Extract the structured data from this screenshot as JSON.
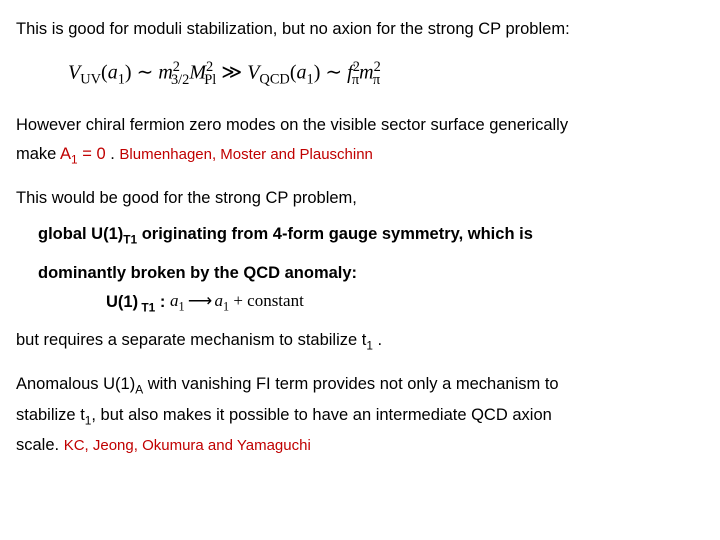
{
  "p1": "This is good for moduli stabilization, but no axion for the strong CP problem:",
  "eq1": {
    "Vuv": "V",
    "uv_sub": "UV",
    "arg1_open": "(",
    "arg1_a": "a",
    "arg1_sub": "1",
    "arg1_close": ")",
    "sim1": " ∼ ",
    "m32_m": "m",
    "m32_sub": "3/2",
    "m32_sup": "2",
    "Mpl_M": "M",
    "Mpl_sub": "Pl",
    "Mpl_sup": "2",
    "gg": " ≫ ",
    "Vqcd_V": "V",
    "qcd_sub": "QCD",
    "arg2_open": "(",
    "arg2_a": "a",
    "arg2_sub": "1",
    "arg2_close": ")",
    "sim2": " ∼ ",
    "fpi_f": "f",
    "fpi_sub": "π",
    "fpi_sup": "2",
    "mpi_m": "m",
    "mpi_sub": "π",
    "mpi_sup": "2"
  },
  "p2a": "However chiral fermion zero modes on the visible sector surface generically",
  "p2b_make": "make   ",
  "p2b_A": "A",
  "p2b_Asub": "1",
  "p2b_eq": " = 0 ",
  "p2b_dot": ".  ",
  "cite1": "Blumenhagen, Moster and Plauschinn",
  "p3": "This would be good for the strong CP problem,",
  "p4a": "global U(1)",
  "p4a_sub": "T1",
  "p4a_rest": "  originating from 4-form gauge symmetry, which is",
  "p4b": "dominantly  broken by the QCD anomaly:",
  "u1line": {
    "label_U": "U(1)",
    "label_sub": " T1",
    "colon": " :    ",
    "a1_a": "a",
    "a1_sub": "1",
    "arrow": "  ⟶  ",
    "a1b_a": "a",
    "a1b_sub": "1",
    "plus_const": " + constant"
  },
  "p5a": "but requires a separate mechanism to stabilize t",
  "p5a_sub": "1",
  "p5a_end": " .",
  "p6a": "Anomalous U(1)",
  "p6a_sub": "A",
  "p6a_rest": " with vanishing FI term provides not only a  mechanism to",
  "p6b_pre": "stabilize t",
  "p6b_sub": "1",
  "p6b_rest": ",  but also makes it possible to have an intermediate QCD axion",
  "p6c": "scale.  ",
  "cite2": "KC, Jeong, Okumura and Yamaguchi",
  "colors": {
    "text": "#000000",
    "accent": "#c00000",
    "bg": "#ffffff"
  }
}
